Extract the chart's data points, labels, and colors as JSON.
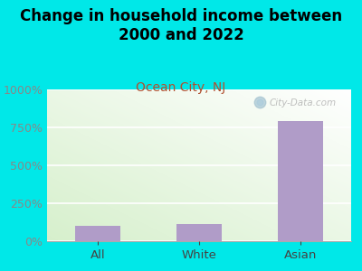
{
  "title": "Change in household income between\n2000 and 2022",
  "subtitle": "Ocean City, NJ",
  "categories": [
    "All",
    "White",
    "Asian"
  ],
  "values": [
    100,
    115,
    790
  ],
  "bar_color": "#b09cc8",
  "background_color": "#00e8e8",
  "plot_bg_color_topleft": "#e8f5e0",
  "plot_bg_color_topright": "#f8f8f4",
  "plot_bg_color_bottomleft": "#d8eec8",
  "title_fontsize": 12,
  "subtitle_fontsize": 10,
  "subtitle_color": "#b05030",
  "ytick_label_color": "#888888",
  "xtick_label_color": "#444444",
  "ylim": [
    0,
    1000
  ],
  "yticks": [
    0,
    250,
    500,
    750,
    1000
  ],
  "watermark_text": "City-Data.com",
  "grid_color": "#cccccc",
  "bar_width": 0.45
}
